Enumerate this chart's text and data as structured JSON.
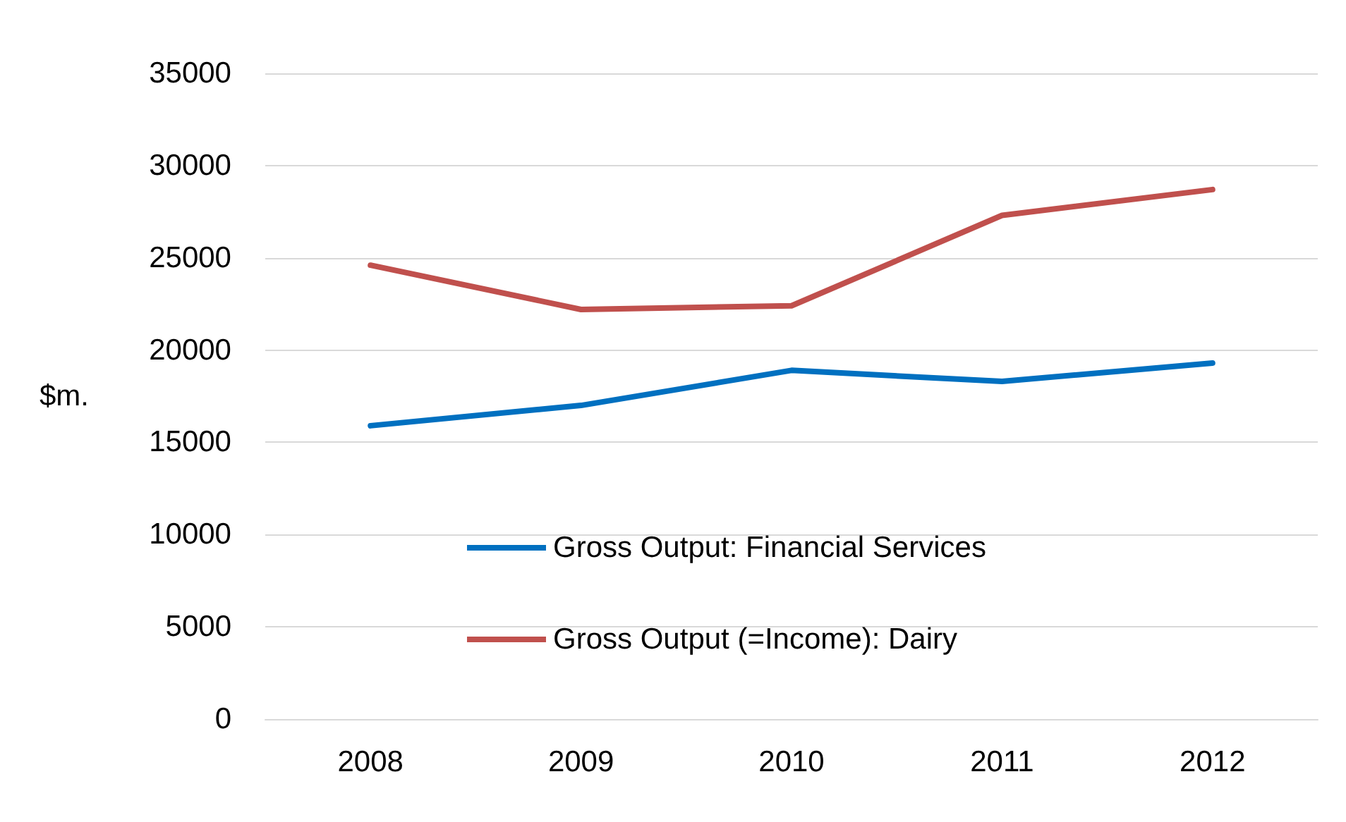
{
  "chart_data": {
    "type": "line",
    "ylabel": "$m.",
    "categories": [
      "2008",
      "2009",
      "2010",
      "2011",
      "2012"
    ],
    "series": [
      {
        "name": "Gross Output: Financial Services",
        "color": "#0070c0",
        "values": [
          15900,
          17000,
          18900,
          18300,
          19300
        ]
      },
      {
        "name": "Gross Output (=Income): Dairy",
        "color": "#c0504d",
        "values": [
          24600,
          22200,
          22400,
          27300,
          28700
        ]
      }
    ],
    "ylim": [
      0,
      35000
    ],
    "yticks": [
      0,
      5000,
      10000,
      15000,
      20000,
      25000,
      30000,
      35000
    ],
    "grid": "y",
    "legend": "bottom",
    "marker": "none",
    "line_style": "solid"
  }
}
